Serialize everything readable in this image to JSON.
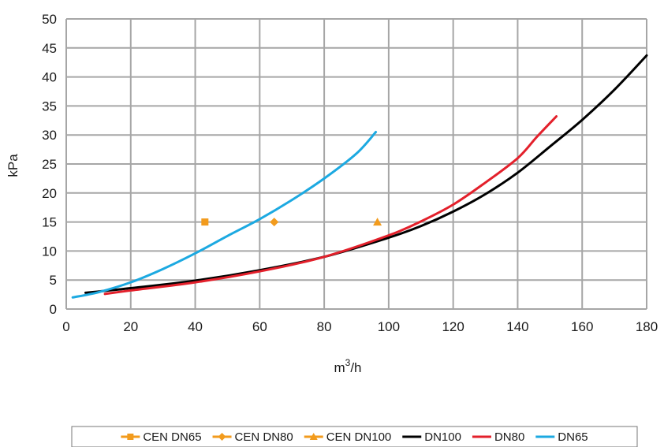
{
  "chart_data": {
    "type": "line",
    "xlabel": "m",
    "xlabel_sup": "3",
    "xlabel_suffix": "/h",
    "ylabel": "kPa",
    "xlim": [
      0,
      180
    ],
    "ylim": [
      0,
      50
    ],
    "x_ticks": [
      0,
      20,
      40,
      60,
      80,
      100,
      120,
      140,
      160,
      180
    ],
    "y_ticks": [
      0,
      5,
      10,
      15,
      20,
      25,
      30,
      35,
      40,
      45,
      50
    ],
    "grid": true,
    "legend_position": "bottom",
    "series": [
      {
        "name": "CEN DN65",
        "kind": "marker",
        "marker": "square",
        "color": "#f29b1d",
        "points": [
          [
            43,
            15
          ]
        ]
      },
      {
        "name": "CEN DN80",
        "kind": "marker",
        "marker": "diamond",
        "color": "#f29b1d",
        "points": [
          [
            64.5,
            15
          ]
        ]
      },
      {
        "name": "CEN DN100",
        "kind": "marker",
        "marker": "triangle",
        "color": "#f29b1d",
        "points": [
          [
            96.5,
            15
          ]
        ]
      },
      {
        "name": "DN100",
        "kind": "line",
        "color": "#000000",
        "points": [
          [
            6,
            2.8
          ],
          [
            20,
            3.6
          ],
          [
            40,
            4.9
          ],
          [
            60,
            6.7
          ],
          [
            80,
            9.0
          ],
          [
            100,
            12.3
          ],
          [
            110,
            14.3
          ],
          [
            120,
            16.8
          ],
          [
            130,
            19.8
          ],
          [
            140,
            23.5
          ],
          [
            150,
            28.0
          ],
          [
            160,
            32.6
          ],
          [
            170,
            37.8
          ],
          [
            180,
            43.7
          ]
        ]
      },
      {
        "name": "DN80",
        "kind": "line",
        "color": "#e3202b",
        "points": [
          [
            12,
            2.6
          ],
          [
            20,
            3.2
          ],
          [
            40,
            4.6
          ],
          [
            60,
            6.5
          ],
          [
            80,
            9.0
          ],
          [
            100,
            12.7
          ],
          [
            110,
            15.1
          ],
          [
            120,
            18.0
          ],
          [
            130,
            21.8
          ],
          [
            140,
            26.0
          ],
          [
            146,
            29.7
          ],
          [
            152,
            33.2
          ]
        ]
      },
      {
        "name": "DN65",
        "kind": "line",
        "color": "#1ca9e1",
        "points": [
          [
            2,
            2.0
          ],
          [
            10,
            2.9
          ],
          [
            20,
            4.6
          ],
          [
            30,
            6.9
          ],
          [
            40,
            9.6
          ],
          [
            50,
            12.6
          ],
          [
            60,
            15.5
          ],
          [
            70,
            18.8
          ],
          [
            80,
            22.5
          ],
          [
            90,
            26.8
          ],
          [
            96,
            30.5
          ]
        ]
      }
    ]
  }
}
